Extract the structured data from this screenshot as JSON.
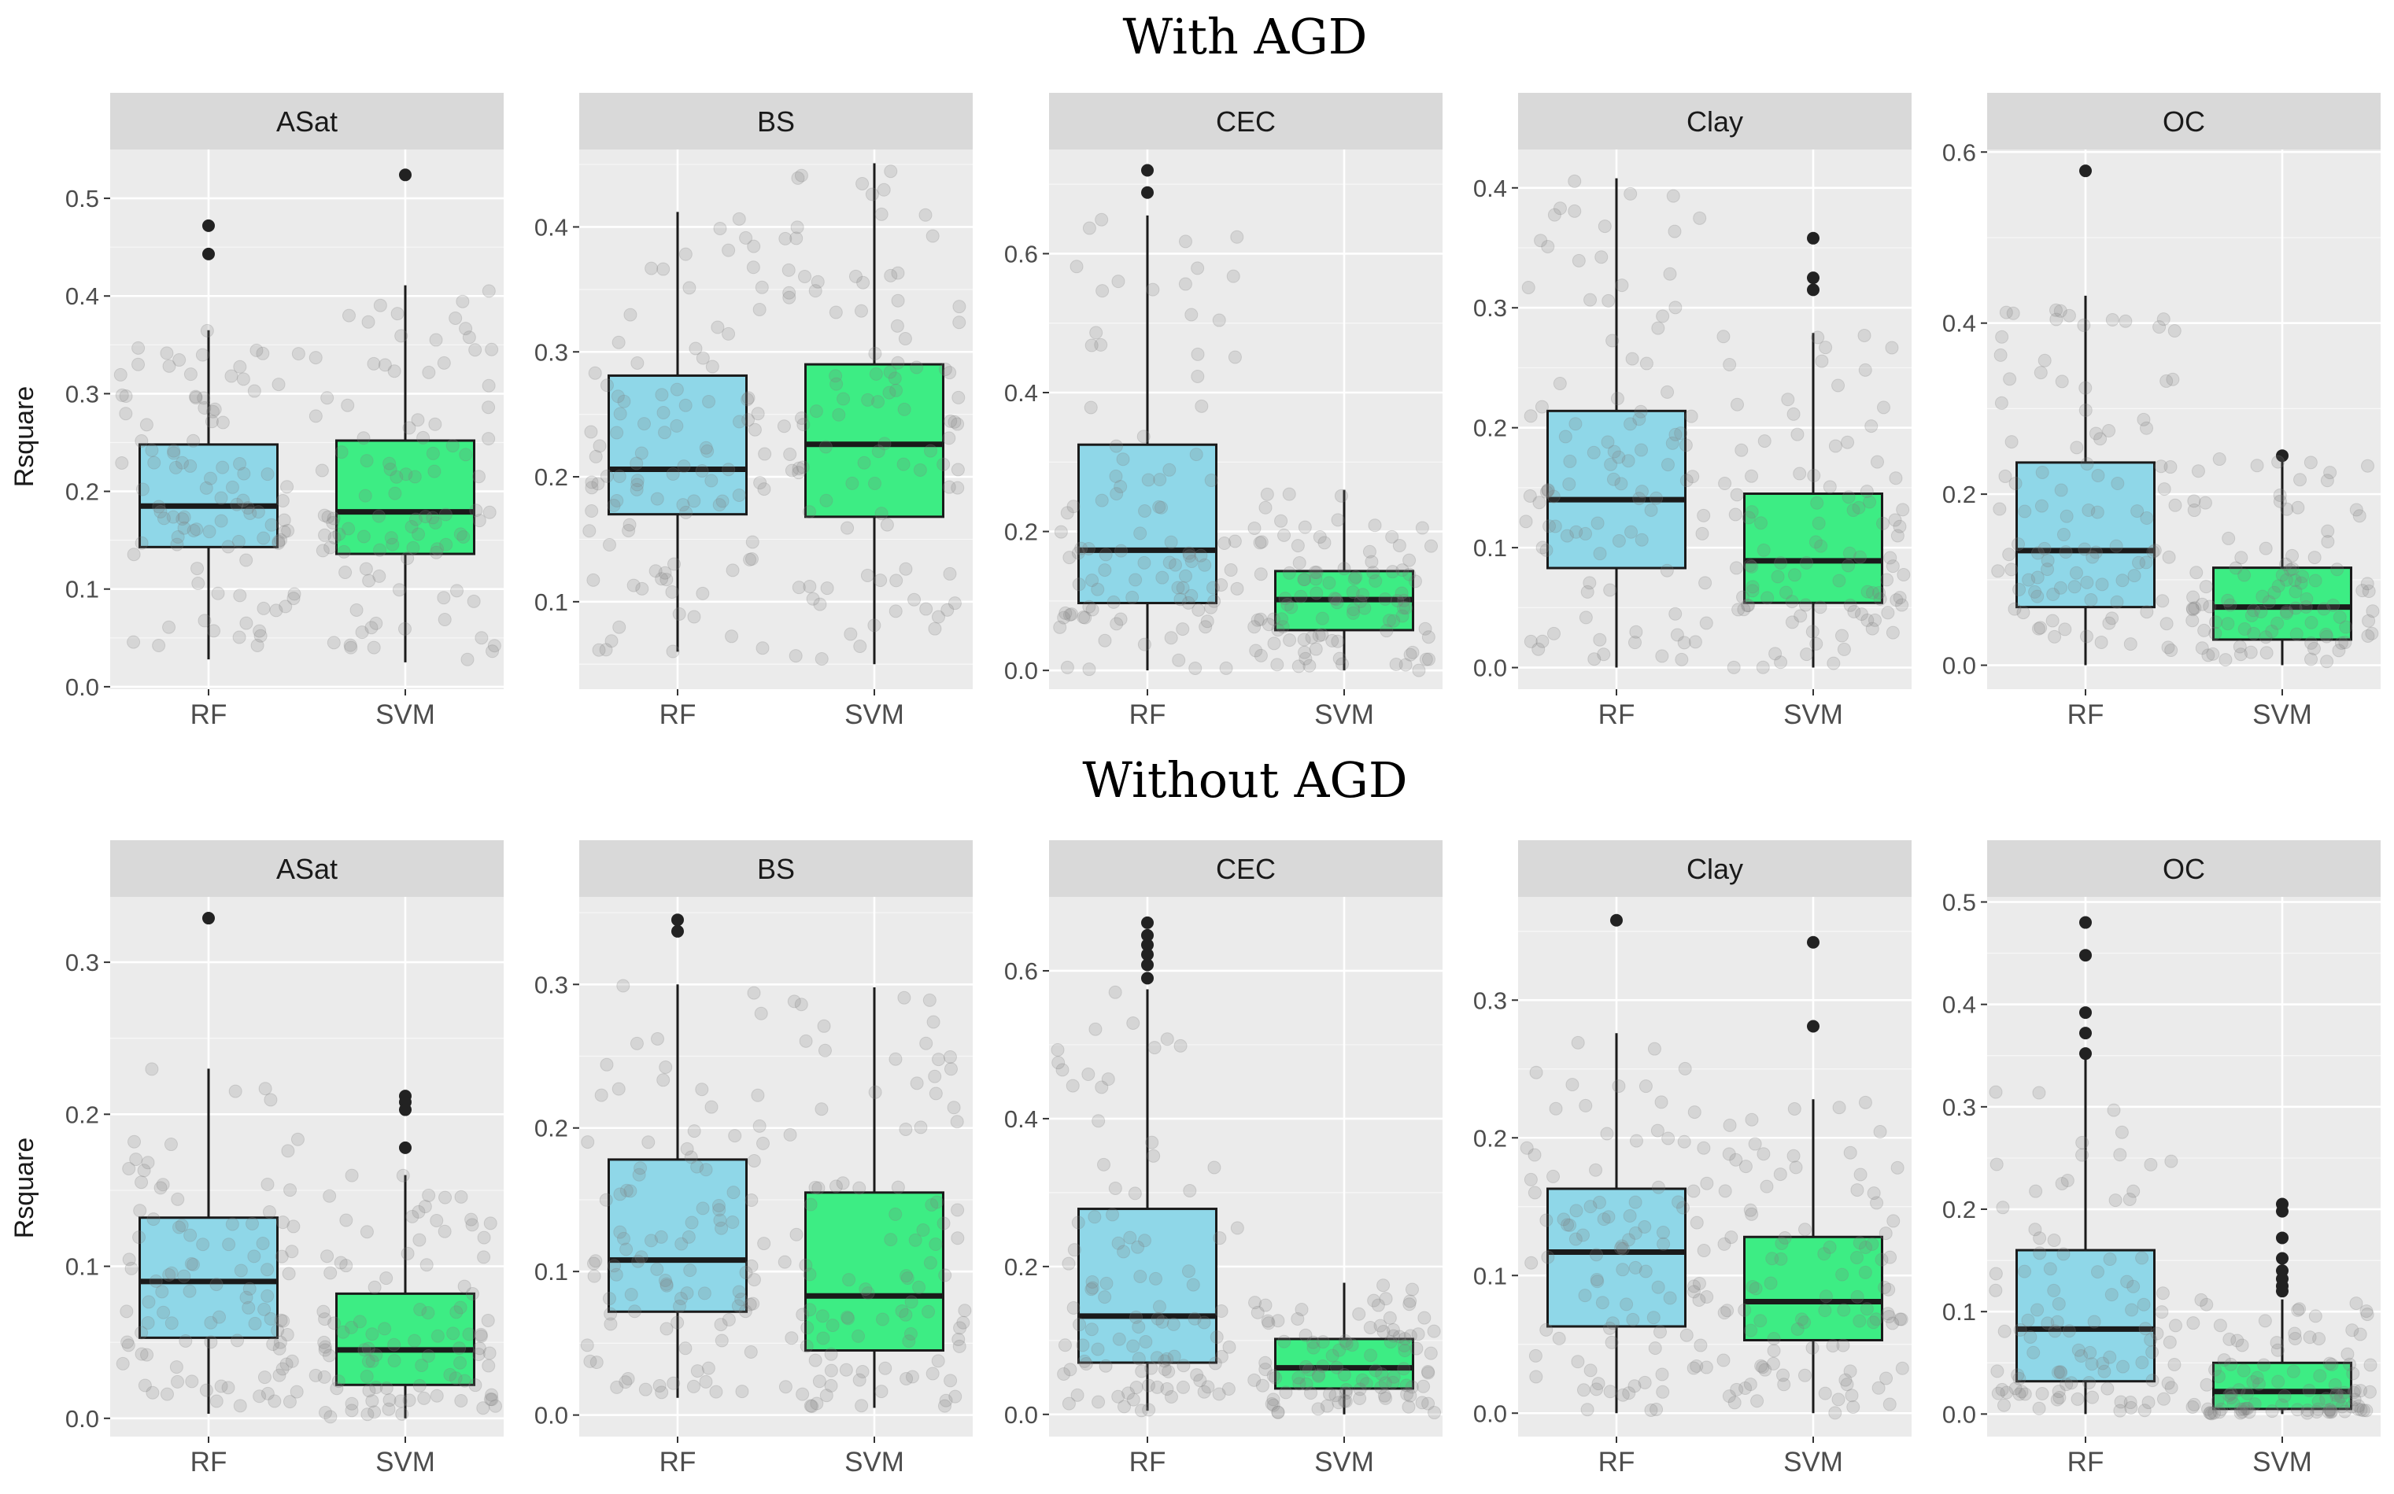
{
  "figure": {
    "row_titles": [
      "With AGD",
      "Without AGD"
    ],
    "ylabel": "Rsquare"
  },
  "colors": {
    "RF": "#8fd7e8",
    "SVM": "#3ded84",
    "panel_bg": "#ebebeb",
    "strip_bg": "#d9d9d9",
    "grid": "#ffffff",
    "outlier": "#222222",
    "jitter": "#7f7f7f"
  },
  "chart_data": [
    {
      "type": "box",
      "row": "With AGD",
      "title": "ASat",
      "ylabel": "Rsquare",
      "categories": [
        "RF",
        "SVM"
      ],
      "ylim": [
        -0.0025,
        0.55
      ],
      "yticks": [
        0.0,
        0.1,
        0.2,
        0.3,
        0.4,
        0.5
      ],
      "yticklabels": [
        "0.0",
        "0.1",
        "0.2",
        "0.3",
        "0.4",
        "0.5"
      ],
      "boxes": [
        {
          "name": "RF",
          "whisker_low": 0.028,
          "q1": 0.143,
          "median": 0.185,
          "q3": 0.248,
          "whisker_high": 0.365,
          "outliers": [
            0.472,
            0.443
          ]
        },
        {
          "name": "SVM",
          "whisker_low": 0.025,
          "q1": 0.136,
          "median": 0.179,
          "q3": 0.252,
          "whisker_high": 0.411,
          "outliers": [
            0.524
          ]
        }
      ]
    },
    {
      "type": "box",
      "row": "With AGD",
      "title": "BS",
      "ylabel": "",
      "categories": [
        "RF",
        "SVM"
      ],
      "ylim": [
        0.03,
        0.462
      ],
      "yticks": [
        0.1,
        0.2,
        0.3,
        0.4
      ],
      "yticklabels": [
        "0.1",
        "0.2",
        "0.3",
        "0.4"
      ],
      "boxes": [
        {
          "name": "RF",
          "whisker_low": 0.06,
          "q1": 0.17,
          "median": 0.206,
          "q3": 0.281,
          "whisker_high": 0.412,
          "outliers": []
        },
        {
          "name": "SVM",
          "whisker_low": 0.05,
          "q1": 0.168,
          "median": 0.226,
          "q3": 0.29,
          "whisker_high": 0.451,
          "outliers": []
        }
      ]
    },
    {
      "type": "box",
      "row": "With AGD",
      "title": "CEC",
      "ylabel": "",
      "categories": [
        "RF",
        "SVM"
      ],
      "ylim": [
        -0.027,
        0.75
      ],
      "yticks": [
        0.0,
        0.2,
        0.4,
        0.6
      ],
      "yticklabels": [
        "0.0",
        "0.2",
        "0.4",
        "0.6"
      ],
      "boxes": [
        {
          "name": "RF",
          "whisker_low": 0.0,
          "q1": 0.097,
          "median": 0.173,
          "q3": 0.325,
          "whisker_high": 0.655,
          "outliers": [
            0.72,
            0.688
          ]
        },
        {
          "name": "SVM",
          "whisker_low": 0.0,
          "q1": 0.058,
          "median": 0.102,
          "q3": 0.143,
          "whisker_high": 0.26,
          "outliers": []
        }
      ]
    },
    {
      "type": "box",
      "row": "With AGD",
      "title": "Clay",
      "ylabel": "",
      "categories": [
        "RF",
        "SVM"
      ],
      "ylim": [
        -0.018,
        0.432
      ],
      "yticks": [
        0.0,
        0.1,
        0.2,
        0.3,
        0.4
      ],
      "yticklabels": [
        "0.0",
        "0.1",
        "0.2",
        "0.3",
        "0.4"
      ],
      "boxes": [
        {
          "name": "RF",
          "whisker_low": 0.0,
          "q1": 0.083,
          "median": 0.14,
          "q3": 0.214,
          "whisker_high": 0.408,
          "outliers": []
        },
        {
          "name": "SVM",
          "whisker_low": 0.0,
          "q1": 0.054,
          "median": 0.089,
          "q3": 0.145,
          "whisker_high": 0.279,
          "outliers": [
            0.358,
            0.325,
            0.315
          ]
        }
      ]
    },
    {
      "type": "box",
      "row": "With AGD",
      "title": "OC",
      "ylabel": "",
      "categories": [
        "RF",
        "SVM"
      ],
      "ylim": [
        -0.028,
        0.603
      ],
      "yticks": [
        0.0,
        0.2,
        0.4,
        0.6
      ],
      "yticklabels": [
        "0.0",
        "0.2",
        "0.4",
        "0.6"
      ],
      "boxes": [
        {
          "name": "RF",
          "whisker_low": 0.0,
          "q1": 0.068,
          "median": 0.134,
          "q3": 0.237,
          "whisker_high": 0.432,
          "outliers": [
            0.578
          ]
        },
        {
          "name": "SVM",
          "whisker_low": 0.0,
          "q1": 0.03,
          "median": 0.068,
          "q3": 0.114,
          "whisker_high": 0.245,
          "outliers": [
            0.245
          ]
        }
      ]
    },
    {
      "type": "box",
      "row": "Without AGD",
      "title": "ASat",
      "ylabel": "Rsquare",
      "categories": [
        "RF",
        "SVM"
      ],
      "ylim": [
        -0.012,
        0.343
      ],
      "yticks": [
        0.0,
        0.1,
        0.2,
        0.3
      ],
      "yticklabels": [
        "0.0",
        "0.1",
        "0.2",
        "0.3"
      ],
      "boxes": [
        {
          "name": "RF",
          "whisker_low": 0.003,
          "q1": 0.053,
          "median": 0.09,
          "q3": 0.132,
          "whisker_high": 0.23,
          "outliers": [
            0.329
          ]
        },
        {
          "name": "SVM",
          "whisker_low": 0.0,
          "q1": 0.022,
          "median": 0.045,
          "q3": 0.082,
          "whisker_high": 0.16,
          "outliers": [
            0.212,
            0.208,
            0.203,
            0.178
          ]
        }
      ]
    },
    {
      "type": "box",
      "row": "Without AGD",
      "title": "BS",
      "ylabel": "",
      "categories": [
        "RF",
        "SVM"
      ],
      "ylim": [
        -0.015,
        0.361
      ],
      "yticks": [
        0.0,
        0.1,
        0.2,
        0.3
      ],
      "yticklabels": [
        "0.0",
        "0.1",
        "0.2",
        "0.3"
      ],
      "boxes": [
        {
          "name": "RF",
          "whisker_low": 0.012,
          "q1": 0.072,
          "median": 0.108,
          "q3": 0.178,
          "whisker_high": 0.3,
          "outliers": [
            0.345,
            0.337
          ]
        },
        {
          "name": "SVM",
          "whisker_low": 0.005,
          "q1": 0.045,
          "median": 0.083,
          "q3": 0.155,
          "whisker_high": 0.298,
          "outliers": []
        }
      ]
    },
    {
      "type": "box",
      "row": "Without AGD",
      "title": "CEC",
      "ylabel": "",
      "categories": [
        "RF",
        "SVM"
      ],
      "ylim": [
        -0.03,
        0.7
      ],
      "yticks": [
        0.0,
        0.2,
        0.4,
        0.6
      ],
      "yticklabels": [
        "0.0",
        "0.2",
        "0.4",
        "0.6"
      ],
      "boxes": [
        {
          "name": "RF",
          "whisker_low": 0.005,
          "q1": 0.07,
          "median": 0.133,
          "q3": 0.278,
          "whisker_high": 0.575,
          "outliers": [
            0.665,
            0.648,
            0.635,
            0.622,
            0.608,
            0.59
          ]
        },
        {
          "name": "SVM",
          "whisker_low": 0.0,
          "q1": 0.035,
          "median": 0.063,
          "q3": 0.102,
          "whisker_high": 0.178,
          "outliers": []
        }
      ]
    },
    {
      "type": "box",
      "row": "Without AGD",
      "title": "Clay",
      "ylabel": "",
      "categories": [
        "RF",
        "SVM"
      ],
      "ylim": [
        -0.017,
        0.375
      ],
      "yticks": [
        0.0,
        0.1,
        0.2,
        0.3
      ],
      "yticklabels": [
        "0.0",
        "0.1",
        "0.2",
        "0.3"
      ],
      "boxes": [
        {
          "name": "RF",
          "whisker_low": 0.0,
          "q1": 0.063,
          "median": 0.117,
          "q3": 0.163,
          "whisker_high": 0.276,
          "outliers": [
            0.358
          ]
        },
        {
          "name": "SVM",
          "whisker_low": 0.0,
          "q1": 0.053,
          "median": 0.081,
          "q3": 0.128,
          "whisker_high": 0.228,
          "outliers": [
            0.342,
            0.281
          ]
        }
      ]
    },
    {
      "type": "box",
      "row": "Without AGD",
      "title": "OC",
      "ylabel": "",
      "categories": [
        "RF",
        "SVM"
      ],
      "ylim": [
        -0.022,
        0.505
      ],
      "yticks": [
        0.0,
        0.1,
        0.2,
        0.3,
        0.4,
        0.5
      ],
      "yticklabels": [
        "0.0",
        "0.1",
        "0.2",
        "0.3",
        "0.4",
        "0.5"
      ],
      "boxes": [
        {
          "name": "RF",
          "whisker_low": 0.0,
          "q1": 0.032,
          "median": 0.083,
          "q3": 0.16,
          "whisker_high": 0.35,
          "outliers": [
            0.48,
            0.448,
            0.392,
            0.372,
            0.352
          ]
        },
        {
          "name": "SVM",
          "whisker_low": 0.0,
          "q1": 0.005,
          "median": 0.022,
          "q3": 0.05,
          "whisker_high": 0.112,
          "outliers": [
            0.205,
            0.198,
            0.172,
            0.152,
            0.14,
            0.132,
            0.125,
            0.12
          ]
        }
      ]
    }
  ]
}
